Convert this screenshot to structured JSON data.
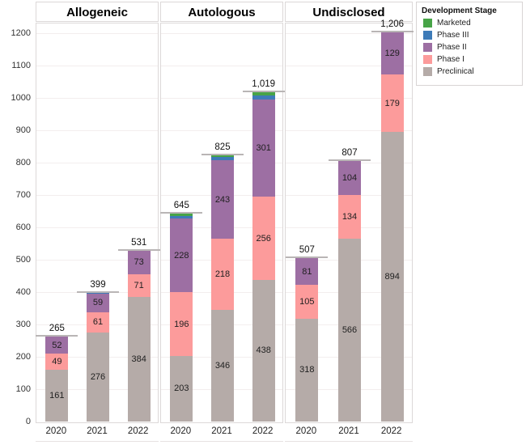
{
  "legend": {
    "title": "Development Stage",
    "entries": [
      {
        "label": "Marketed",
        "color": "#47a447"
      },
      {
        "label": "Phase III",
        "color": "#3e7bb8"
      },
      {
        "label": "Phase II",
        "color": "#9d6fa3"
      },
      {
        "label": "Phase I",
        "color": "#fc9b9b"
      },
      {
        "label": "Preclinical",
        "color": "#b5aba8"
      }
    ]
  },
  "chart_data": {
    "type": "bar",
    "stacked": true,
    "title": "",
    "xlabel": "",
    "ylabel": "",
    "ylim": [
      0,
      1200
    ],
    "yticks": [
      0,
      100,
      200,
      300,
      400,
      500,
      600,
      700,
      800,
      900,
      1000,
      1100,
      1200
    ],
    "grid": true,
    "legend_position": "top-right",
    "stage_order": [
      "Preclinical",
      "Phase I",
      "Phase II",
      "Phase III",
      "Marketed"
    ],
    "stage_colors": {
      "Preclinical": "#b5aba8",
      "Phase I": "#fc9b9b",
      "Phase II": "#9d6fa3",
      "Phase III": "#3e7bb8",
      "Marketed": "#47a447"
    },
    "facets": [
      {
        "label": "Allogeneic",
        "bars": [
          {
            "category": "2020",
            "total": 265,
            "total_label": "265",
            "segments": [
              {
                "stage": "Preclinical",
                "value": 161,
                "label": "161"
              },
              {
                "stage": "Phase I",
                "value": 49,
                "label": "49"
              },
              {
                "stage": "Phase II",
                "value": 52,
                "label": "52"
              },
              {
                "stage": "Phase III",
                "value": 3,
                "label": "",
                "estimated": true
              }
            ]
          },
          {
            "category": "2021",
            "total": 399,
            "total_label": "399",
            "segments": [
              {
                "stage": "Preclinical",
                "value": 276,
                "label": "276"
              },
              {
                "stage": "Phase I",
                "value": 61,
                "label": "61"
              },
              {
                "stage": "Phase II",
                "value": 59,
                "label": "59"
              },
              {
                "stage": "Phase III",
                "value": 3,
                "label": "",
                "estimated": true
              }
            ]
          },
          {
            "category": "2022",
            "total": 531,
            "total_label": "531",
            "segments": [
              {
                "stage": "Preclinical",
                "value": 384,
                "label": "384"
              },
              {
                "stage": "Phase I",
                "value": 71,
                "label": "71"
              },
              {
                "stage": "Phase II",
                "value": 73,
                "label": "73"
              },
              {
                "stage": "Phase III",
                "value": 3,
                "label": "",
                "estimated": true
              }
            ]
          }
        ]
      },
      {
        "label": "Autologous",
        "bars": [
          {
            "category": "2020",
            "total": 645,
            "total_label": "645",
            "segments": [
              {
                "stage": "Preclinical",
                "value": 203,
                "label": "203"
              },
              {
                "stage": "Phase I",
                "value": 196,
                "label": "196"
              },
              {
                "stage": "Phase II",
                "value": 228,
                "label": "228"
              },
              {
                "stage": "Phase III",
                "value": 9,
                "label": "",
                "estimated": true
              },
              {
                "stage": "Marketed",
                "value": 9,
                "label": "",
                "estimated": true
              }
            ]
          },
          {
            "category": "2021",
            "total": 825,
            "total_label": "825",
            "segments": [
              {
                "stage": "Preclinical",
                "value": 346,
                "label": "346"
              },
              {
                "stage": "Phase I",
                "value": 218,
                "label": "218"
              },
              {
                "stage": "Phase II",
                "value": 243,
                "label": "243"
              },
              {
                "stage": "Phase III",
                "value": 11,
                "label": "",
                "estimated": true
              },
              {
                "stage": "Marketed",
                "value": 7,
                "label": "",
                "estimated": true
              }
            ]
          },
          {
            "category": "2022",
            "total": 1019,
            "total_label": "1,019",
            "segments": [
              {
                "stage": "Preclinical",
                "value": 438,
                "label": "438"
              },
              {
                "stage": "Phase I",
                "value": 256,
                "label": "256"
              },
              {
                "stage": "Phase II",
                "value": 301,
                "label": "301"
              },
              {
                "stage": "Phase III",
                "value": 13,
                "label": "",
                "estimated": true
              },
              {
                "stage": "Marketed",
                "value": 11,
                "label": "",
                "estimated": true
              }
            ]
          }
        ]
      },
      {
        "label": "Undisclosed",
        "bars": [
          {
            "category": "2020",
            "total": 507,
            "total_label": "507",
            "segments": [
              {
                "stage": "Preclinical",
                "value": 318,
                "label": "318"
              },
              {
                "stage": "Phase I",
                "value": 105,
                "label": "105"
              },
              {
                "stage": "Phase II",
                "value": 81,
                "label": "81"
              },
              {
                "stage": "Phase III",
                "value": 3,
                "label": "",
                "estimated": true
              }
            ]
          },
          {
            "category": "2021",
            "total": 807,
            "total_label": "807",
            "segments": [
              {
                "stage": "Preclinical",
                "value": 566,
                "label": "566"
              },
              {
                "stage": "Phase I",
                "value": 134,
                "label": "134"
              },
              {
                "stage": "Phase II",
                "value": 104,
                "label": "104"
              },
              {
                "stage": "Phase III",
                "value": 3,
                "label": "",
                "estimated": true
              }
            ]
          },
          {
            "category": "2022",
            "total": 1206,
            "total_label": "1,206",
            "segments": [
              {
                "stage": "Preclinical",
                "value": 894,
                "label": "894"
              },
              {
                "stage": "Phase I",
                "value": 179,
                "label": "179"
              },
              {
                "stage": "Phase II",
                "value": 129,
                "label": "129"
              },
              {
                "stage": "Phase III",
                "value": 4,
                "label": "",
                "estimated": true
              }
            ]
          }
        ]
      }
    ]
  }
}
